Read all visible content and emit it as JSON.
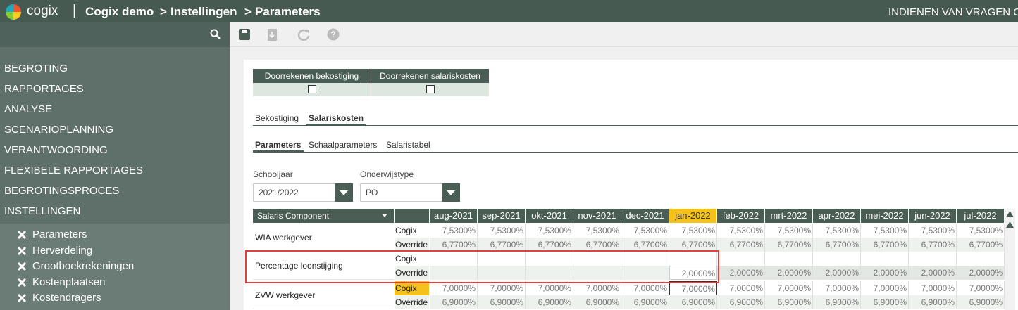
{
  "header": {
    "logo": "cogix",
    "divider": "|",
    "breadcrumb": [
      "Cogix demo",
      "Instellingen",
      "Parameters"
    ],
    "separator": ">",
    "right": "INDIENEN VAN VRAGEN O"
  },
  "sidebar": {
    "menu": [
      "BEGROTING",
      "RAPPORTAGES",
      "ANALYSE",
      "SCENARIOPLANNING",
      "VERANTWOORDING",
      "FLEXIBELE RAPPORTAGES",
      "BEGROTINGSPROCES",
      "INSTELLINGEN"
    ],
    "submenu": [
      "Parameters",
      "Herverdeling",
      "Grootboekrekeningen",
      "Kostenplaatsen",
      "Kostendragers"
    ]
  },
  "actions": [
    "Doorrekenen bekostiging",
    "Doorrekenen salariskosten"
  ],
  "tabs": [
    "Bekostiging",
    "Salariskosten"
  ],
  "active_tab": 1,
  "subtabs": [
    "Parameters",
    "Schaalparameters",
    "Salaristabel"
  ],
  "active_subtab": 0,
  "filters": [
    {
      "label": "Schooljaar",
      "value": "2021/2022"
    },
    {
      "label": "Onderwijstype",
      "value": "PO"
    }
  ],
  "table": {
    "header": "Salaris Component",
    "months": [
      "aug-2021",
      "sep-2021",
      "okt-2021",
      "nov-2021",
      "dec-2021",
      "jan-2022",
      "feb-2022",
      "mrt-2022",
      "apr-2022",
      "mei-2022",
      "jun-2022",
      "jul-2022"
    ],
    "highlight_month": 5,
    "rows": [
      {
        "name": "WIA werkgever",
        "subrows": [
          {
            "label": "Cogix",
            "values": [
              "7,5300%",
              "7,5300%",
              "7,5300%",
              "7,5300%",
              "7,5300%",
              "7,5300%",
              "7,5300%",
              "7,5300%",
              "7,5300%",
              "7,5300%",
              "7,5300%",
              "7,5300%"
            ]
          },
          {
            "label": "Override",
            "values": [
              "6,7700%",
              "6,7700%",
              "6,7700%",
              "6,7700%",
              "6,7700%",
              "6,7700%",
              "6,7700%",
              "6,7700%",
              "6,7700%",
              "6,7700%",
              "6,7700%",
              "6,7700%"
            ]
          }
        ]
      },
      {
        "name": "Percentage loonstijging",
        "subrows": [
          {
            "label": "Cogix",
            "values": [
              null,
              null,
              null,
              null,
              null,
              null,
              null,
              null,
              null,
              null,
              null,
              null
            ]
          },
          {
            "label": "Override",
            "values": [
              null,
              null,
              null,
              null,
              null,
              "2,0000%",
              "2,0000%",
              "2,0000%",
              "2,0000%",
              "2,0000%",
              "2,0000%",
              "2,0000%"
            ]
          }
        ]
      },
      {
        "name": "ZVW werkgever",
        "subrows": [
          {
            "label": "Cogix",
            "values": [
              "7,0000%",
              "7,0000%",
              "7,0000%",
              "7,0000%",
              "7,0000%",
              "7,0000%",
              "7,0000%",
              "7,0000%",
              "7,0000%",
              "7,0000%",
              "7,0000%",
              "7,0000%"
            ]
          },
          {
            "label": "Override",
            "values": [
              "6,9000%",
              "6,9000%",
              "6,9000%",
              "6,9000%",
              "6,9000%",
              "6,9000%",
              "6,9000%",
              "6,9000%",
              "6,9000%",
              "6,9000%",
              "6,9000%",
              "6,9000%"
            ]
          }
        ]
      }
    ]
  }
}
